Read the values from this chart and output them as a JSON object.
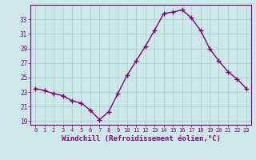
{
  "x": [
    0,
    1,
    2,
    3,
    4,
    5,
    6,
    7,
    8,
    9,
    10,
    11,
    12,
    13,
    14,
    15,
    16,
    17,
    18,
    19,
    20,
    21,
    22,
    23
  ],
  "y": [
    23.5,
    23.2,
    22.8,
    22.5,
    21.8,
    21.5,
    20.5,
    19.2,
    20.3,
    22.8,
    25.3,
    27.3,
    29.3,
    31.5,
    33.8,
    34.0,
    34.3,
    33.2,
    31.5,
    29.0,
    27.3,
    25.8,
    24.8,
    23.5
  ],
  "line_color": "#800080",
  "marker": "+",
  "markersize": 4,
  "linewidth": 1,
  "background_color": "#cce8e8",
  "grid_color": "#aacccc",
  "xlabel": "Windchill (Refroidissement éolien,°C)",
  "xlabel_fontsize": 6.5,
  "tick_color": "#800080",
  "tick_label_color": "#800080",
  "ylim": [
    18.5,
    35.0
  ],
  "xlim": [
    -0.5,
    23.5
  ],
  "yticks": [
    19,
    21,
    23,
    25,
    27,
    29,
    31,
    33
  ],
  "xticks": [
    0,
    1,
    2,
    3,
    4,
    5,
    6,
    7,
    8,
    9,
    10,
    11,
    12,
    13,
    14,
    15,
    16,
    17,
    18,
    19,
    20,
    21,
    22,
    23
  ]
}
